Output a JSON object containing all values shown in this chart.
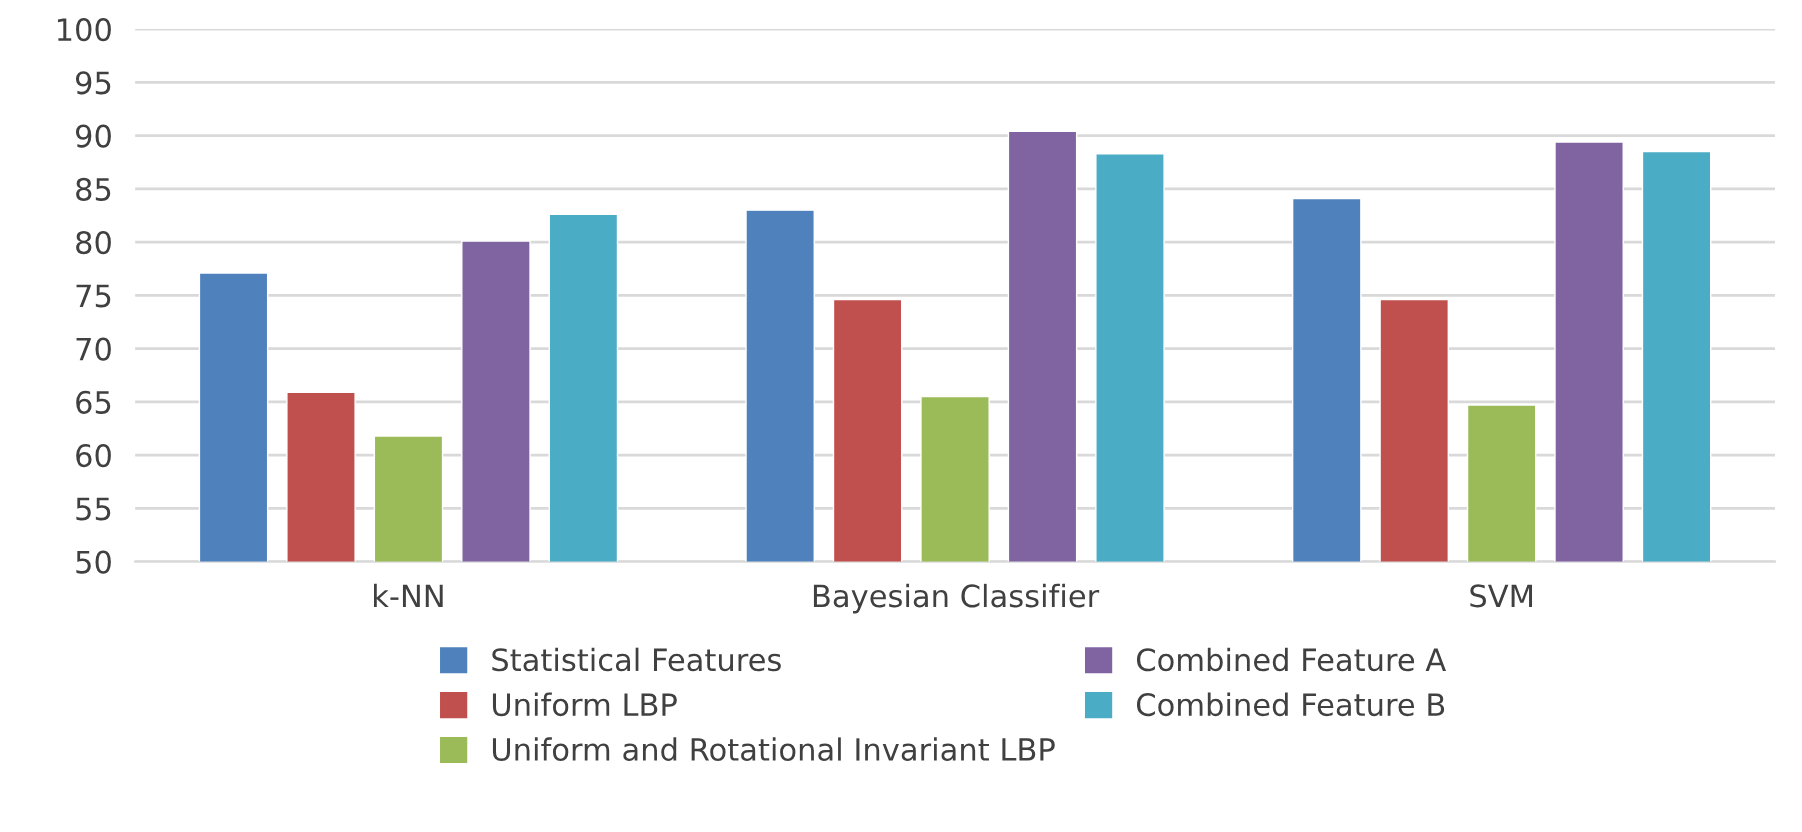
{
  "chart_data": {
    "type": "bar",
    "categories": [
      "k-NN",
      "Bayesian Classifier",
      "SVM"
    ],
    "series": [
      {
        "name": "Statistical Features",
        "color": "#4f81bd",
        "values": [
          77.1,
          83.0,
          84.1
        ]
      },
      {
        "name": "Uniform LBP",
        "color": "#c0504d",
        "values": [
          65.9,
          74.6,
          74.6
        ]
      },
      {
        "name": "Uniform and Rotational Invariant LBP",
        "color": "#9bbb59",
        "values": [
          61.8,
          65.5,
          64.7
        ]
      },
      {
        "name": "Combined Feature A",
        "color": "#8064a2",
        "values": [
          80.1,
          90.4,
          89.4
        ]
      },
      {
        "name": "Combined Feature B",
        "color": "#4bacc6",
        "values": [
          82.6,
          88.3,
          88.5
        ]
      }
    ],
    "ylim": [
      50,
      100
    ],
    "yticks": [
      50,
      55,
      60,
      65,
      70,
      75,
      80,
      85,
      90,
      95,
      100
    ],
    "grid": "y",
    "legend": "bottom"
  }
}
